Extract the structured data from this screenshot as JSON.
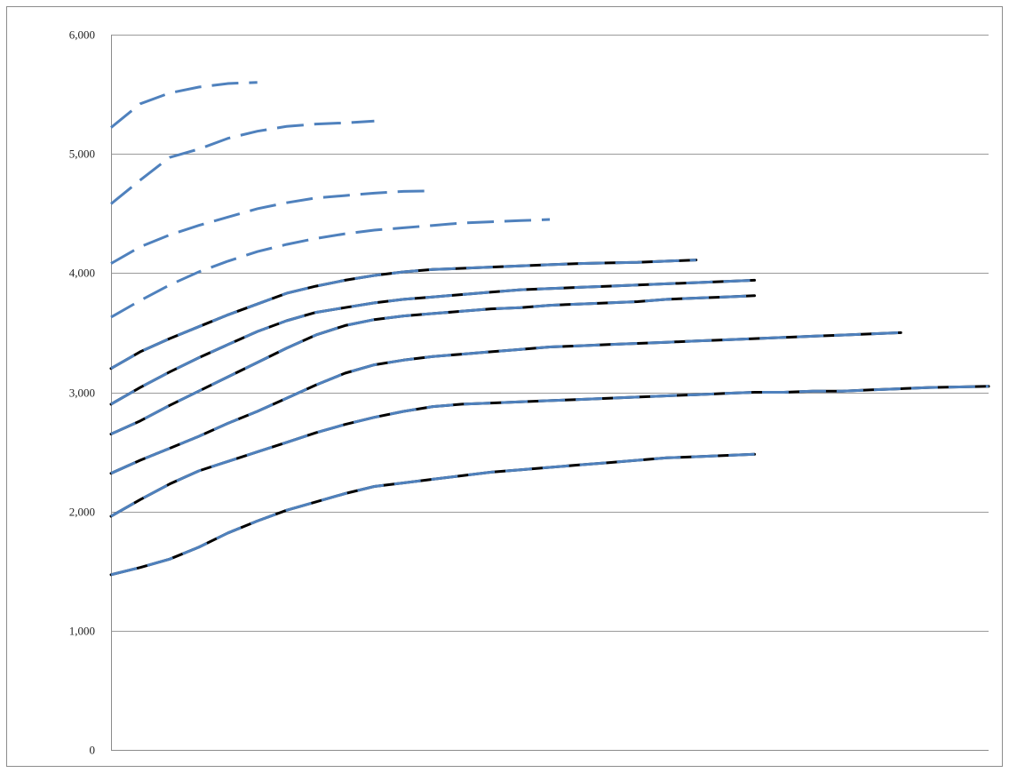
{
  "chart_data": {
    "type": "line",
    "title": "",
    "xlabel": "",
    "ylabel": "",
    "ylim": [
      0,
      6000
    ],
    "yticks": [
      {
        "value": 0,
        "label": "0"
      },
      {
        "value": 1000,
        "label": "1,000"
      },
      {
        "value": 2000,
        "label": "2,000"
      },
      {
        "value": 3000,
        "label": "3,000"
      },
      {
        "value": 4000,
        "label": "4,000"
      },
      {
        "value": 5000,
        "label": "5,000"
      },
      {
        "value": 6000,
        "label": "6,000"
      }
    ],
    "xlim": [
      0,
      30
    ],
    "x_tick_labels_shown": false,
    "grid": "horizontal",
    "legend": "none",
    "colors": {
      "solid": "#000000",
      "dashed": "#4f81bd"
    },
    "series": [
      {
        "style": "dashed",
        "x": [
          0,
          1,
          2,
          3,
          4,
          5
        ],
        "y": [
          5220,
          5420,
          5510,
          5560,
          5590,
          5600
        ]
      },
      {
        "style": "dashed",
        "x": [
          0,
          1,
          2,
          3,
          4,
          5,
          6,
          7,
          8,
          9
        ],
        "y": [
          4580,
          4780,
          4970,
          5040,
          5130,
          5190,
          5230,
          5250,
          5260,
          5275
        ]
      },
      {
        "style": "dashed",
        "x": [
          0,
          1,
          2,
          3,
          4,
          5,
          6,
          7,
          8,
          9,
          10,
          11
        ],
        "y": [
          4080,
          4220,
          4320,
          4400,
          4470,
          4540,
          4590,
          4630,
          4650,
          4670,
          4685,
          4690
        ]
      },
      {
        "style": "dashed",
        "x": [
          0,
          1,
          2,
          3,
          4,
          5,
          6,
          7,
          8,
          9,
          10,
          11,
          12,
          13,
          14,
          15
        ],
        "y": [
          3630,
          3770,
          3900,
          4010,
          4100,
          4180,
          4240,
          4290,
          4330,
          4360,
          4380,
          4400,
          4420,
          4430,
          4440,
          4450
        ]
      },
      {
        "style": "solid-dashed",
        "x": [
          0,
          1,
          2,
          3,
          4,
          5,
          6,
          7,
          8,
          9,
          10,
          11,
          12,
          13,
          14,
          15,
          16,
          17,
          18,
          19,
          20
        ],
        "y": [
          3200,
          3340,
          3450,
          3550,
          3650,
          3740,
          3830,
          3890,
          3940,
          3980,
          4010,
          4030,
          4040,
          4050,
          4060,
          4070,
          4080,
          4085,
          4090,
          4100,
          4110
        ]
      },
      {
        "style": "solid-dashed",
        "x": [
          0,
          1,
          2,
          3,
          4,
          5,
          6,
          7,
          8,
          9,
          10,
          11,
          12,
          13,
          14,
          15,
          16,
          17,
          18,
          19,
          20,
          21,
          22
        ],
        "y": [
          2900,
          3040,
          3170,
          3290,
          3400,
          3510,
          3600,
          3670,
          3710,
          3750,
          3780,
          3800,
          3820,
          3840,
          3860,
          3870,
          3880,
          3890,
          3900,
          3910,
          3920,
          3930,
          3940
        ]
      },
      {
        "style": "solid-dashed",
        "x": [
          0,
          1,
          2,
          3,
          4,
          5,
          6,
          7,
          8,
          9,
          10,
          11,
          12,
          13,
          14,
          15,
          16,
          17,
          18,
          19,
          20,
          21,
          22
        ],
        "y": [
          2650,
          2760,
          2890,
          3010,
          3130,
          3250,
          3370,
          3480,
          3560,
          3610,
          3640,
          3660,
          3680,
          3700,
          3710,
          3730,
          3740,
          3750,
          3760,
          3780,
          3790,
          3800,
          3810
        ]
      },
      {
        "style": "solid-dashed",
        "x": [
          0,
          1,
          2,
          3,
          4,
          5,
          6,
          7,
          8,
          9,
          10,
          11,
          12,
          13,
          14,
          15,
          16,
          17,
          18,
          19,
          20,
          21,
          22,
          23,
          24,
          25,
          26,
          27
        ],
        "y": [
          2320,
          2430,
          2530,
          2630,
          2740,
          2840,
          2950,
          3060,
          3160,
          3230,
          3270,
          3300,
          3320,
          3340,
          3360,
          3380,
          3390,
          3400,
          3410,
          3420,
          3430,
          3440,
          3450,
          3460,
          3470,
          3480,
          3490,
          3500
        ]
      },
      {
        "style": "solid-dashed",
        "x": [
          0,
          1,
          2,
          3,
          4,
          5,
          6,
          7,
          8,
          9,
          10,
          11,
          12,
          13,
          14,
          15,
          16,
          17,
          18,
          19,
          20,
          21,
          22,
          23,
          24,
          25,
          26,
          27,
          28,
          29,
          30
        ],
        "y": [
          1960,
          2100,
          2230,
          2340,
          2420,
          2500,
          2580,
          2660,
          2730,
          2790,
          2840,
          2880,
          2900,
          2910,
          2920,
          2930,
          2940,
          2950,
          2960,
          2970,
          2980,
          2990,
          3000,
          3000,
          3010,
          3010,
          3020,
          3030,
          3040,
          3045,
          3050
        ]
      },
      {
        "style": "solid-dashed",
        "x": [
          0,
          1,
          2,
          3,
          4,
          5,
          6,
          7,
          8,
          9,
          10,
          11,
          12,
          13,
          14,
          15,
          16,
          17,
          18,
          19,
          20,
          21,
          22
        ],
        "y": [
          1470,
          1530,
          1600,
          1700,
          1820,
          1920,
          2010,
          2080,
          2150,
          2210,
          2240,
          2270,
          2300,
          2330,
          2350,
          2370,
          2390,
          2410,
          2430,
          2450,
          2460,
          2470,
          2480
        ]
      }
    ]
  }
}
